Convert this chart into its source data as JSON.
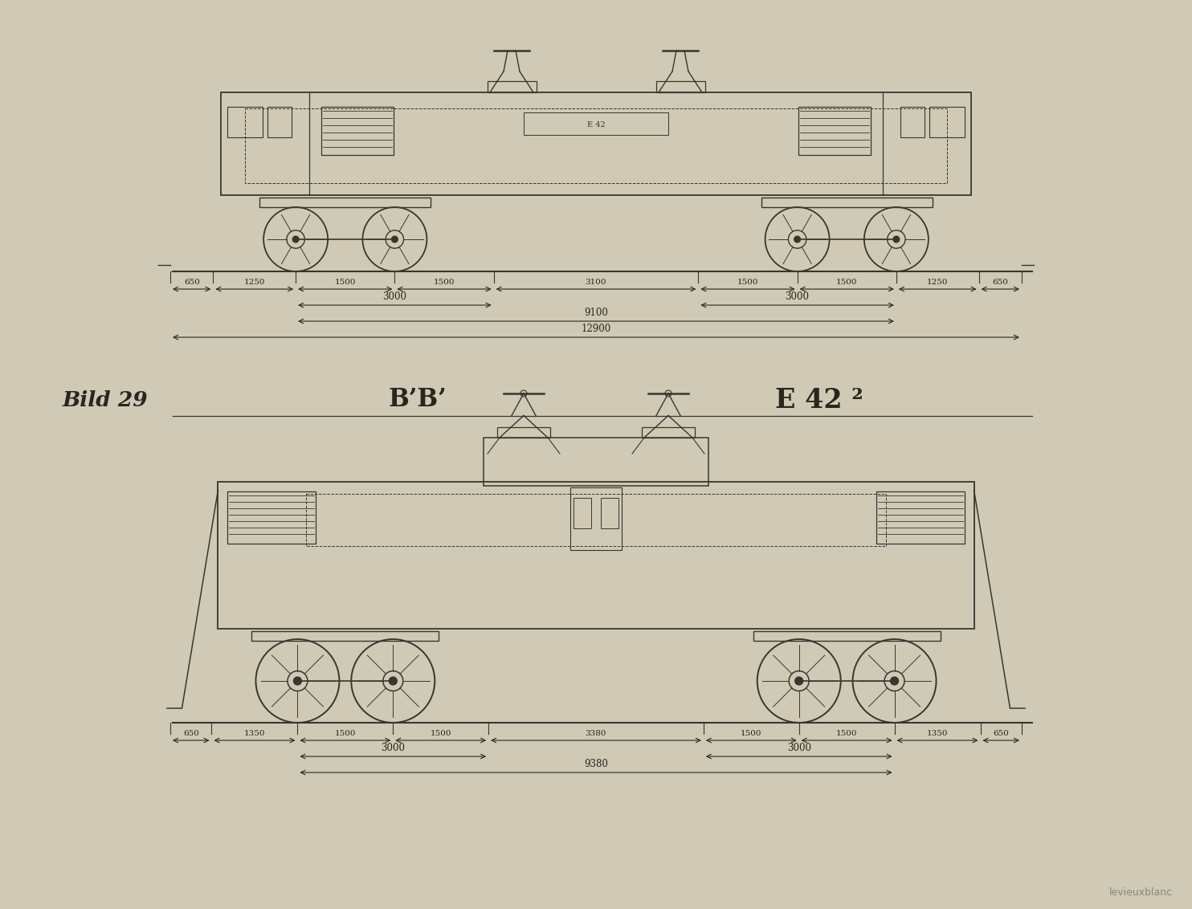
{
  "bg_color": "#cfc9b5",
  "paper_color": "#e0d9c5",
  "line_color": "#3a3530",
  "text_color": "#2a2520",
  "title_label": "Bild 29",
  "config_label": "B’B’",
  "model_label": "E 42 ²",
  "watermark": "levieuxblanc",
  "loco1": {
    "dims_top": [
      "650",
      "1250",
      "1500",
      "1500",
      "3100",
      "1500",
      "1500",
      "1250",
      "650"
    ],
    "dims_mid_left": "3000",
    "dims_mid_right": "3000",
    "dims_bot1": "9100",
    "dims_bot2": "12900"
  },
  "loco2": {
    "dims_top": [
      "650",
      "1350",
      "1500",
      "1500",
      "3380",
      "1500",
      "1500",
      "1350",
      "650"
    ],
    "dims_mid_left": "3000",
    "dims_mid_right": "3000",
    "dims_bot1": "9380"
  }
}
